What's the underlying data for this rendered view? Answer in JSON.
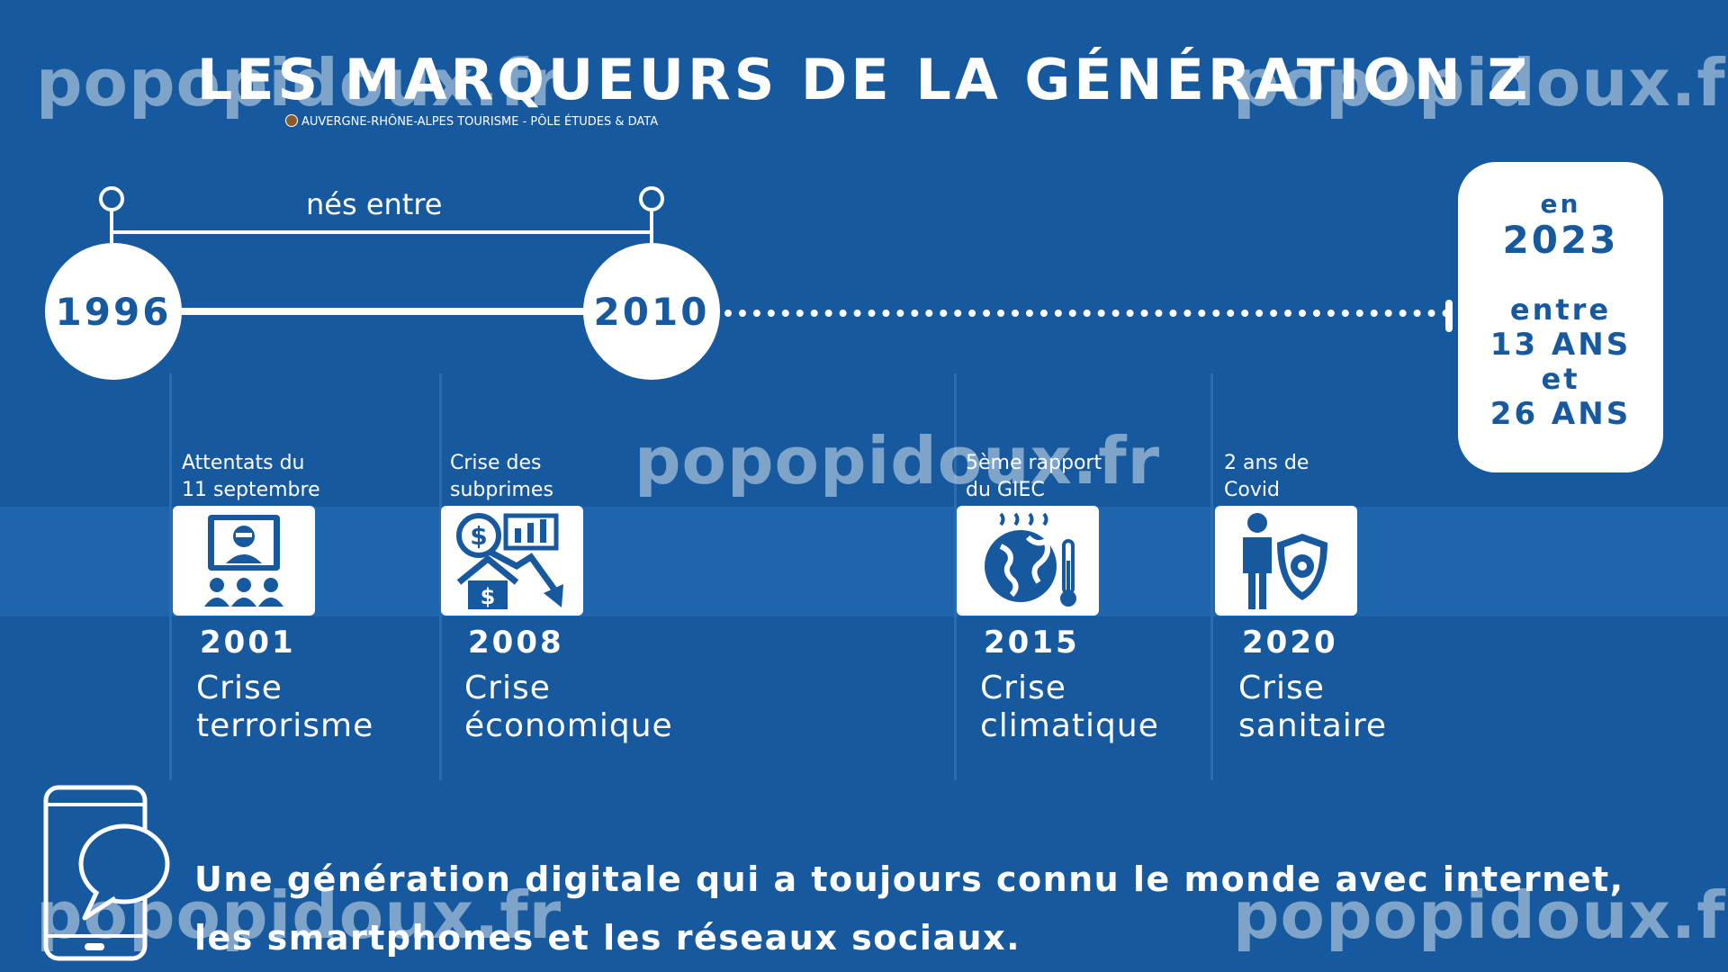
{
  "title": "LES MARQUEURS DE LA GÉNÉRATION Z",
  "credit": "AUVERGNE-RHÔNE-ALPES TOURISME - PÔLE ÉTUDES & DATA",
  "timeline": {
    "range_label": "nés entre",
    "start_year": "1996",
    "end_year": "2010"
  },
  "age_box": {
    "line1": "en",
    "line2": "2023",
    "line3": "entre",
    "line4": "13 ANS",
    "line5": "et",
    "line6": "26 ANS"
  },
  "events": [
    {
      "caption_1": "Attentats du",
      "caption_2": "11 septembre",
      "year": "2001",
      "label_1": "Crise",
      "label_2": "terrorisme",
      "icon": "terrorism-broadcast-icon"
    },
    {
      "caption_1": "Crise des",
      "caption_2": "subprimes",
      "year": "2008",
      "label_1": "Crise",
      "label_2": "économique",
      "icon": "financial-crash-icon"
    },
    {
      "caption_1": "5ème rapport",
      "caption_2": "du GIEC",
      "year": "2015",
      "label_1": "Crise",
      "label_2": "climatique",
      "icon": "global-warming-icon"
    },
    {
      "caption_1": "2 ans de",
      "caption_2": "Covid",
      "year": "2020",
      "label_1": "Crise",
      "label_2": "sanitaire",
      "icon": "health-shield-icon"
    }
  ],
  "footer": {
    "line1": "Une génération digitale qui a toujours connu le monde avec internet,",
    "line2": "les smartphones et les réseaux sociaux.",
    "icon": "smartphone-chat-icon"
  },
  "watermark": "popopidoux.fr",
  "colors": {
    "background": "#17599f",
    "band": "#1e65ad",
    "foreground": "#ffffff"
  }
}
